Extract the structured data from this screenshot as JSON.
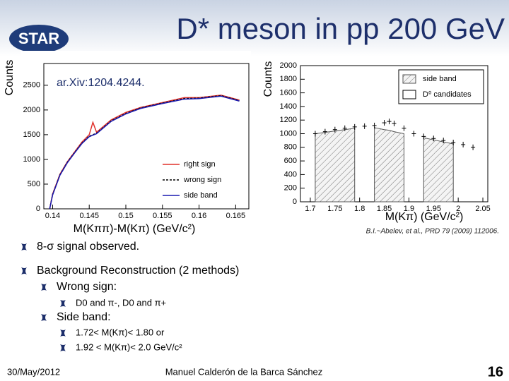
{
  "header": {
    "logo": "STAR",
    "title": "D* meson in pp 200 GeV"
  },
  "chart_data": [
    {
      "type": "line",
      "ylabel": "Counts",
      "xlabel": "M(Kππ)-M(Kπ) (GeV/c²)",
      "annotation": "ar.Xiv:1204.4244.",
      "xlim": [
        0.1388,
        0.1668
      ],
      "xticks": [
        0.14,
        0.145,
        0.15,
        0.155,
        0.16,
        0.165
      ],
      "ylim": [
        0,
        2940
      ],
      "yticks": [
        0,
        500,
        1000,
        1500,
        2000,
        2500
      ],
      "legend": "lower right",
      "x": [
        0.1396,
        0.14,
        0.141,
        0.142,
        0.143,
        0.144,
        0.145,
        0.1455,
        0.146,
        0.148,
        0.15,
        0.152,
        0.155,
        0.158,
        0.16,
        0.163,
        0.1655
      ],
      "series": [
        {
          "name": "right sign",
          "color": "#e0302a",
          "kind": "line",
          "values": [
            0,
            300,
            700,
            950,
            1150,
            1350,
            1500,
            1750,
            1550,
            1800,
            1950,
            2050,
            2150,
            2250,
            2250,
            2300,
            2200
          ]
        },
        {
          "name": "wrong sign",
          "color": "#000000",
          "kind": "dashed",
          "values": [
            0,
            290,
            690,
            940,
            1140,
            1330,
            1470,
            1500,
            1530,
            1780,
            1930,
            2040,
            2140,
            2230,
            2240,
            2290,
            2190
          ]
        },
        {
          "name": "side band",
          "color": "#1a1ab0",
          "kind": "line",
          "values": [
            0,
            280,
            680,
            930,
            1130,
            1320,
            1460,
            1490,
            1520,
            1770,
            1920,
            2030,
            2130,
            2220,
            2230,
            2280,
            2180
          ]
        }
      ]
    },
    {
      "type": "line",
      "ylabel": "Counts",
      "xlabel": "M(Kπ) (GeV/c²)",
      "xlim": [
        1.68,
        2.06
      ],
      "xticks": [
        1.7,
        1.75,
        1.8,
        1.85,
        1.9,
        1.95,
        2,
        2.05
      ],
      "ylim": [
        0,
        2000
      ],
      "yticks": [
        0,
        200,
        400,
        600,
        800,
        1000,
        1200,
        1400,
        1600,
        1800,
        2000
      ],
      "legend": "upper right",
      "x": [
        1.71,
        1.73,
        1.75,
        1.77,
        1.79,
        1.81,
        1.83,
        1.85,
        1.86,
        1.87,
        1.89,
        1.91,
        1.93,
        1.95,
        1.97,
        1.99,
        2.01,
        2.03
      ],
      "series": [
        {
          "name": "side band",
          "color": "#555555",
          "kind": "hatched",
          "values": [
            1000,
            1020,
            1040,
            1060,
            1080,
            null,
            1090,
            1060,
            1050,
            1030,
            1000,
            null,
            940,
            910,
            880,
            850,
            null,
            null
          ]
        },
        {
          "name": "D⁰ candidates",
          "color": "#000000",
          "kind": "points",
          "values": [
            1000,
            1030,
            1060,
            1080,
            1100,
            1110,
            1120,
            1160,
            1180,
            1150,
            1080,
            1000,
            960,
            930,
            900,
            870,
            840,
            800
          ]
        }
      ]
    }
  ],
  "citation": "B.I.~Abelev, et al., PRD 79 (2009) 112006.",
  "bullets": [
    {
      "level": 1,
      "text": "8-σ signal observed."
    },
    {
      "level": 1,
      "text": "Background Reconstruction (2 methods)"
    },
    {
      "level": 2,
      "text": "Wrong sign:"
    },
    {
      "level": 3,
      "text": "D0 and π-, D0 and π+"
    },
    {
      "level": 2,
      "text": "Side band:"
    },
    {
      "level": 3,
      "text": "1.72< M(Kπ)< 1.80 or"
    },
    {
      "level": 3,
      "text": "1.92 < M(Kπ)< 2.0 GeV/c²"
    }
  ],
  "footer": {
    "date": "30/May/2012",
    "author": "Manuel Calderón de la Barca Sánchez",
    "page": "16"
  }
}
